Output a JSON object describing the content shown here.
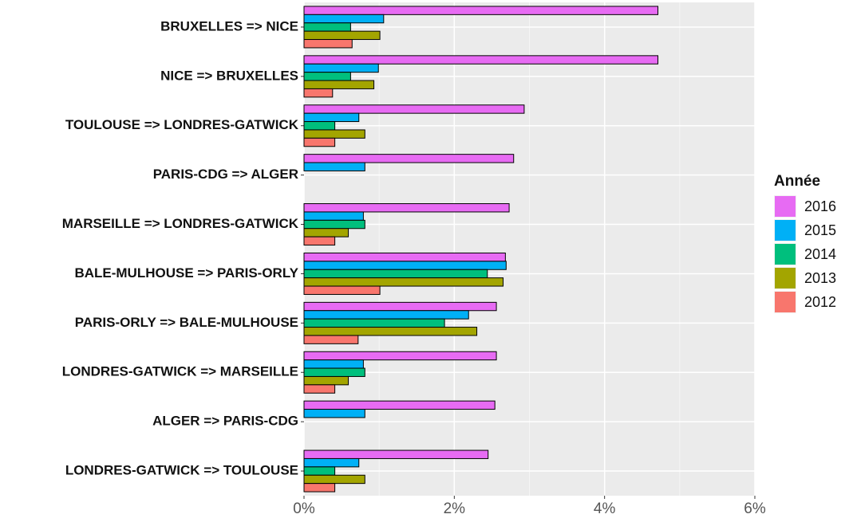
{
  "chart_data": {
    "type": "barh",
    "categories": [
      "BRUXELLES => NICE",
      "NICE => BRUXELLES",
      "TOULOUSE => LONDRES-GATWICK",
      "PARIS-CDG => ALGER",
      "MARSEILLE => LONDRES-GATWICK",
      "BALE-MULHOUSE => PARIS-ORLY",
      "PARIS-ORLY => BALE-MULHOUSE",
      "LONDRES-GATWICK => MARSEILLE",
      "ALGER => PARIS-CDG",
      "LONDRES-GATWICK => TOULOUSE"
    ],
    "series": [
      {
        "name": "2016",
        "color": "#e76bf3",
        "values": [
          4.71,
          4.71,
          2.93,
          2.79,
          2.73,
          2.68,
          2.56,
          2.56,
          2.54,
          2.45
        ]
      },
      {
        "name": "2015",
        "color": "#00b0f6",
        "values": [
          1.06,
          0.99,
          0.73,
          0.81,
          0.79,
          2.69,
          2.19,
          0.79,
          0.81,
          0.73
        ]
      },
      {
        "name": "2014",
        "color": "#00bf7d",
        "values": [
          0.62,
          0.62,
          0.41,
          null,
          0.81,
          2.44,
          1.87,
          0.81,
          null,
          0.41
        ]
      },
      {
        "name": "2013",
        "color": "#a3a500",
        "values": [
          1.01,
          0.93,
          0.81,
          null,
          0.59,
          2.65,
          2.3,
          0.59,
          null,
          0.81
        ]
      },
      {
        "name": "2012",
        "color": "#f8766d",
        "values": [
          0.64,
          0.38,
          0.41,
          null,
          0.41,
          1.01,
          0.72,
          0.41,
          null,
          0.41
        ]
      }
    ],
    "xlim": [
      0,
      6
    ],
    "xticks": [
      {
        "value": 0,
        "label": "0%"
      },
      {
        "value": 2,
        "label": "2%"
      },
      {
        "value": 4,
        "label": "4%"
      },
      {
        "value": 6,
        "label": "6%"
      }
    ],
    "legend_title": "Année",
    "legend_position": "right",
    "grid": true
  }
}
